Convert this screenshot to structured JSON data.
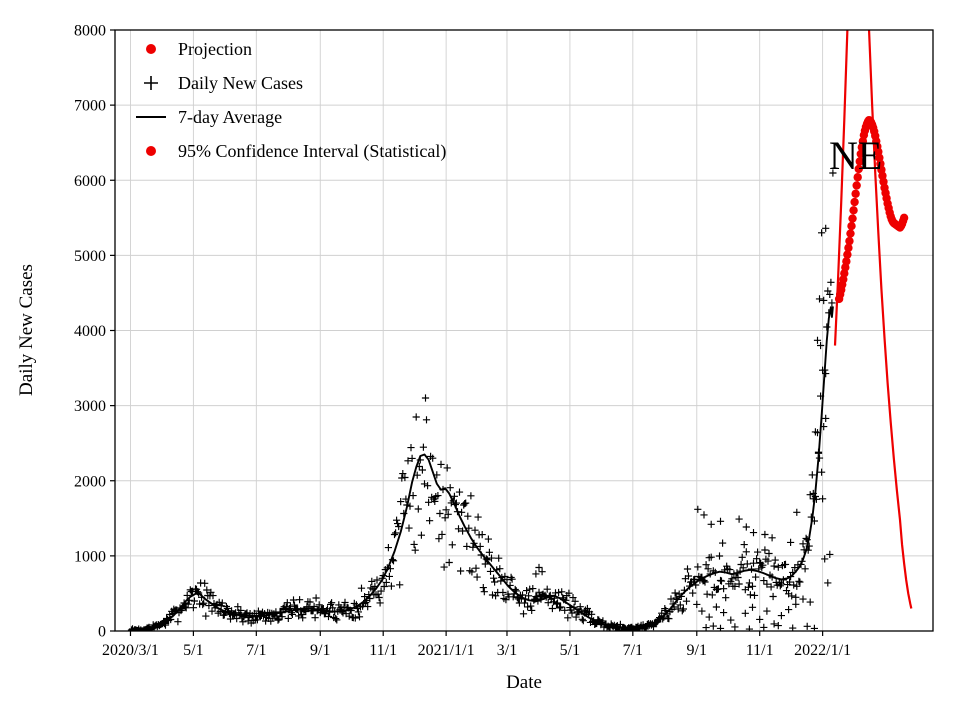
{
  "chart_data": {
    "type": "scatter",
    "title": "",
    "xlabel": "Date",
    "ylabel": "Daily New Cases",
    "ylim": [
      0,
      8000
    ],
    "xlim_days": [
      -15,
      778
    ],
    "grid": true,
    "legend_position": "upper left",
    "colors": {
      "projection": "#ee0000",
      "ci": "#ee0000",
      "daily": "#000000",
      "avg": "#000000",
      "grid": "#d0d0d0",
      "spine": "#000000"
    },
    "annotation": {
      "text": "NE",
      "day": 703,
      "value": 6150
    },
    "y_ticks": [
      0,
      1000,
      2000,
      3000,
      4000,
      5000,
      6000,
      7000,
      8000
    ],
    "x_ticks": [
      {
        "day": 0,
        "label": "2020/3/1"
      },
      {
        "day": 61,
        "label": "5/1"
      },
      {
        "day": 122,
        "label": "7/1"
      },
      {
        "day": 184,
        "label": "9/1"
      },
      {
        "day": 245,
        "label": "11/1"
      },
      {
        "day": 306,
        "label": "2021/1/1"
      },
      {
        "day": 365,
        "label": "3/1"
      },
      {
        "day": 426,
        "label": "5/1"
      },
      {
        "day": 487,
        "label": "7/1"
      },
      {
        "day": 549,
        "label": "9/1"
      },
      {
        "day": 610,
        "label": "11/1"
      },
      {
        "day": 671,
        "label": "2022/1/1"
      }
    ],
    "legend": [
      {
        "label": "Projection",
        "marker": "red-dot"
      },
      {
        "label": "Daily New Cases",
        "marker": "black-plus"
      },
      {
        "label": "7-day Average",
        "marker": "black-line"
      },
      {
        "label": "95% Confidence Interval (Statistical)",
        "marker": "red-dot"
      }
    ],
    "series": {
      "avg_line": {
        "name": "7-day Average",
        "points": [
          [
            0,
            5
          ],
          [
            10,
            15
          ],
          [
            20,
            40
          ],
          [
            28,
            80
          ],
          [
            35,
            130
          ],
          [
            42,
            210
          ],
          [
            48,
            300
          ],
          [
            53,
            390
          ],
          [
            58,
            455
          ],
          [
            63,
            495
          ],
          [
            67,
            495
          ],
          [
            72,
            430
          ],
          [
            78,
            370
          ],
          [
            84,
            310
          ],
          [
            90,
            270
          ],
          [
            97,
            240
          ],
          [
            104,
            222
          ],
          [
            111,
            205
          ],
          [
            118,
            195
          ],
          [
            124,
            192
          ],
          [
            130,
            205
          ],
          [
            137,
            222
          ],
          [
            144,
            240
          ],
          [
            151,
            258
          ],
          [
            158,
            275
          ],
          [
            165,
            295
          ],
          [
            171,
            302
          ],
          [
            177,
            295
          ],
          [
            184,
            280
          ],
          [
            190,
            268
          ],
          [
            196,
            258
          ],
          [
            202,
            262
          ],
          [
            208,
            274
          ],
          [
            214,
            296
          ],
          [
            220,
            332
          ],
          [
            226,
            390
          ],
          [
            232,
            468
          ],
          [
            238,
            562
          ],
          [
            244,
            680
          ],
          [
            250,
            850
          ],
          [
            256,
            1060
          ],
          [
            262,
            1320
          ],
          [
            268,
            1650
          ],
          [
            273,
            1980
          ],
          [
            277,
            2180
          ],
          [
            281,
            2330
          ],
          [
            285,
            2350
          ],
          [
            289,
            2280
          ],
          [
            293,
            2120
          ],
          [
            297,
            1960
          ],
          [
            301,
            1880
          ],
          [
            305,
            1900
          ],
          [
            309,
            1830
          ],
          [
            314,
            1690
          ],
          [
            319,
            1530
          ],
          [
            324,
            1390
          ],
          [
            330,
            1240
          ],
          [
            336,
            1110
          ],
          [
            342,
            1000
          ],
          [
            348,
            900
          ],
          [
            354,
            800
          ],
          [
            360,
            700
          ],
          [
            366,
            600
          ],
          [
            372,
            520
          ],
          [
            379,
            450
          ],
          [
            386,
            410
          ],
          [
            393,
            395
          ],
          [
            400,
            425
          ],
          [
            406,
            458
          ],
          [
            411,
            468
          ],
          [
            416,
            438
          ],
          [
            421,
            390
          ],
          [
            426,
            345
          ],
          [
            432,
            290
          ],
          [
            438,
            232
          ],
          [
            444,
            182
          ],
          [
            450,
            140
          ],
          [
            456,
            104
          ],
          [
            462,
            78
          ],
          [
            468,
            57
          ],
          [
            474,
            44
          ],
          [
            480,
            37
          ],
          [
            487,
            36
          ],
          [
            493,
            46
          ],
          [
            499,
            63
          ],
          [
            505,
            92
          ],
          [
            511,
            136
          ],
          [
            517,
            200
          ],
          [
            523,
            290
          ],
          [
            529,
            394
          ],
          [
            535,
            490
          ],
          [
            541,
            572
          ],
          [
            547,
            636
          ],
          [
            553,
            692
          ],
          [
            559,
            732
          ],
          [
            565,
            766
          ],
          [
            571,
            790
          ],
          [
            577,
            780
          ],
          [
            583,
            756
          ],
          [
            589,
            772
          ],
          [
            595,
            802
          ],
          [
            601,
            815
          ],
          [
            607,
            800
          ],
          [
            613,
            774
          ],
          [
            619,
            740
          ],
          [
            625,
            706
          ],
          [
            631,
            686
          ],
          [
            637,
            702
          ],
          [
            641,
            732
          ],
          [
            645,
            792
          ],
          [
            649,
            862
          ],
          [
            652,
            952
          ],
          [
            655,
            1072
          ],
          [
            658,
            1245
          ],
          [
            661,
            1505
          ],
          [
            664,
            1855
          ],
          [
            667,
            2305
          ],
          [
            670,
            2860
          ],
          [
            673,
            3460
          ],
          [
            675,
            3860
          ],
          [
            677,
            4160
          ],
          [
            679,
            4310
          ],
          [
            680,
            4180
          ],
          [
            681,
            4320
          ]
        ]
      },
      "daily_scatter": {
        "name": "Daily New Cases",
        "marker": "+",
        "generate": {
          "seed": 7,
          "start_day": 1,
          "end_day": 681,
          "step_days": 1,
          "rel_noise": 0.55,
          "abs_noise": 30
        },
        "extra_points": [
          [
            670,
            5300
          ],
          [
            674,
            5360
          ],
          [
            668,
            4420
          ],
          [
            672,
            4400
          ],
          [
            666,
            3870
          ],
          [
            669,
            3800
          ],
          [
            674,
            2830
          ],
          [
            664,
            2650
          ],
          [
            667,
            2380
          ],
          [
            662,
            1830
          ],
          [
            671,
            1760
          ],
          [
            646,
            1580
          ],
          [
            550,
            1620
          ],
          [
            556,
            1545
          ],
          [
            563,
            1420
          ],
          [
            572,
            1460
          ],
          [
            590,
            1490
          ],
          [
            597,
            1385
          ],
          [
            604,
            1310
          ],
          [
            615,
            1285
          ],
          [
            622,
            1240
          ],
          [
            640,
            1180
          ],
          [
            396,
            845
          ],
          [
            399,
            790
          ],
          [
            393,
            760
          ],
          [
            554,
            265
          ],
          [
            561,
            185
          ],
          [
            568,
            320
          ],
          [
            575,
            245
          ],
          [
            582,
            145
          ],
          [
            596,
            235
          ],
          [
            603,
            315
          ],
          [
            610,
            155
          ],
          [
            617,
            265
          ],
          [
            624,
            95
          ],
          [
            631,
            205
          ],
          [
            638,
            285
          ],
          [
            645,
            355
          ],
          [
            652,
            425
          ],
          [
            659,
            385
          ],
          [
            558,
            45
          ],
          [
            565,
            65
          ],
          [
            572,
            35
          ],
          [
            586,
            55
          ],
          [
            600,
            25
          ],
          [
            614,
            48
          ],
          [
            628,
            72
          ],
          [
            642,
            38
          ],
          [
            656,
            62
          ],
          [
            663,
            35
          ],
          [
            676,
            640
          ],
          [
            678,
            1020
          ],
          [
            673,
            960
          ]
        ]
      },
      "projection": {
        "name": "Projection",
        "start_day": 687,
        "step": 1,
        "values": [
          4420,
          4480,
          4540,
          4610,
          4680,
          4760,
          4840,
          4920,
          5010,
          5100,
          5190,
          5290,
          5390,
          5490,
          5600,
          5710,
          5820,
          5930,
          6040,
          6150,
          6250,
          6350,
          6440,
          6520,
          6600,
          6660,
          6710,
          6750,
          6780,
          6800,
          6790,
          6770,
          6740,
          6700,
          6650,
          6590,
          6520,
          6450,
          6380,
          6300,
          6220,
          6140,
          6060,
          5980,
          5900,
          5830,
          5760,
          5690,
          5630,
          5570,
          5520,
          5480,
          5450,
          5430,
          5420,
          5410,
          5400,
          5390,
          5380,
          5370,
          5390,
          5420,
          5460,
          5500
        ]
      },
      "ci_curve": {
        "name": "95% Confidence Interval (Statistical)",
        "points": [
          [
            683,
            3800
          ],
          [
            686,
            4700
          ],
          [
            689,
            5700
          ],
          [
            692,
            6800
          ],
          [
            694,
            7600
          ],
          [
            696,
            8400
          ],
          [
            699,
            9400
          ],
          [
            702,
            10100
          ],
          [
            705,
            10400
          ],
          [
            708,
            10200
          ],
          [
            711,
            9500
          ],
          [
            714,
            8500
          ],
          [
            716,
            8000
          ],
          [
            719,
            7000
          ],
          [
            722,
            6100
          ],
          [
            725,
            5300
          ],
          [
            728,
            4550
          ],
          [
            731,
            3900
          ],
          [
            734,
            3300
          ],
          [
            737,
            2780
          ],
          [
            740,
            2300
          ],
          [
            743,
            1870
          ],
          [
            746,
            1480
          ],
          [
            748,
            1150
          ],
          [
            750,
            900
          ],
          [
            752,
            680
          ],
          [
            754,
            500
          ],
          [
            756,
            360
          ],
          [
            757,
            300
          ]
        ]
      }
    }
  }
}
